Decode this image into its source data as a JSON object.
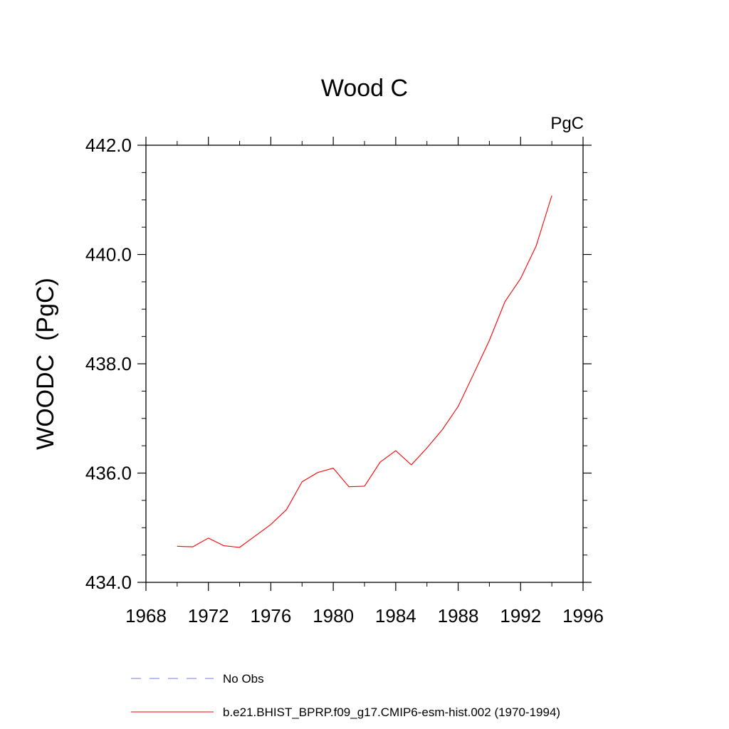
{
  "chart_data": {
    "type": "line",
    "title": "Wood C",
    "units_label": "PgC",
    "ylabel": "WOODC  (PgC)",
    "xlabel": "",
    "xlim": [
      1968,
      1996
    ],
    "ylim": [
      434.0,
      442.0
    ],
    "x_ticks": [
      "1968",
      "1972",
      "1976",
      "1980",
      "1984",
      "1988",
      "1992",
      "1996"
    ],
    "y_ticks": [
      "434.0",
      "436.0",
      "438.0",
      "440.0",
      "442.0"
    ],
    "x_minor_step": 2,
    "y_minor_step": 0.5,
    "grid": false,
    "legend_position": "bottom",
    "series": [
      {
        "name": "No Obs",
        "color": "#7777dd",
        "dash": "dashed",
        "x": [],
        "y": []
      },
      {
        "name": "b.e21.BHIST_BPRP.f09_g17.CMIP6-esm-hist.002 (1970-1994)",
        "color": "#ff0000",
        "dash": "solid",
        "x": [
          1970,
          1971,
          1972,
          1973,
          1974,
          1975,
          1976,
          1977,
          1978,
          1979,
          1980,
          1981,
          1982,
          1983,
          1984,
          1985,
          1986,
          1987,
          1988,
          1989,
          1990,
          1991,
          1992,
          1993,
          1994
        ],
        "y": [
          434.66,
          434.65,
          434.81,
          434.67,
          434.64,
          434.85,
          435.06,
          435.33,
          435.84,
          436.01,
          436.09,
          435.75,
          435.76,
          436.2,
          436.41,
          436.15,
          436.46,
          436.8,
          437.22,
          437.82,
          438.43,
          439.14,
          439.56,
          440.16,
          441.08
        ]
      }
    ]
  }
}
